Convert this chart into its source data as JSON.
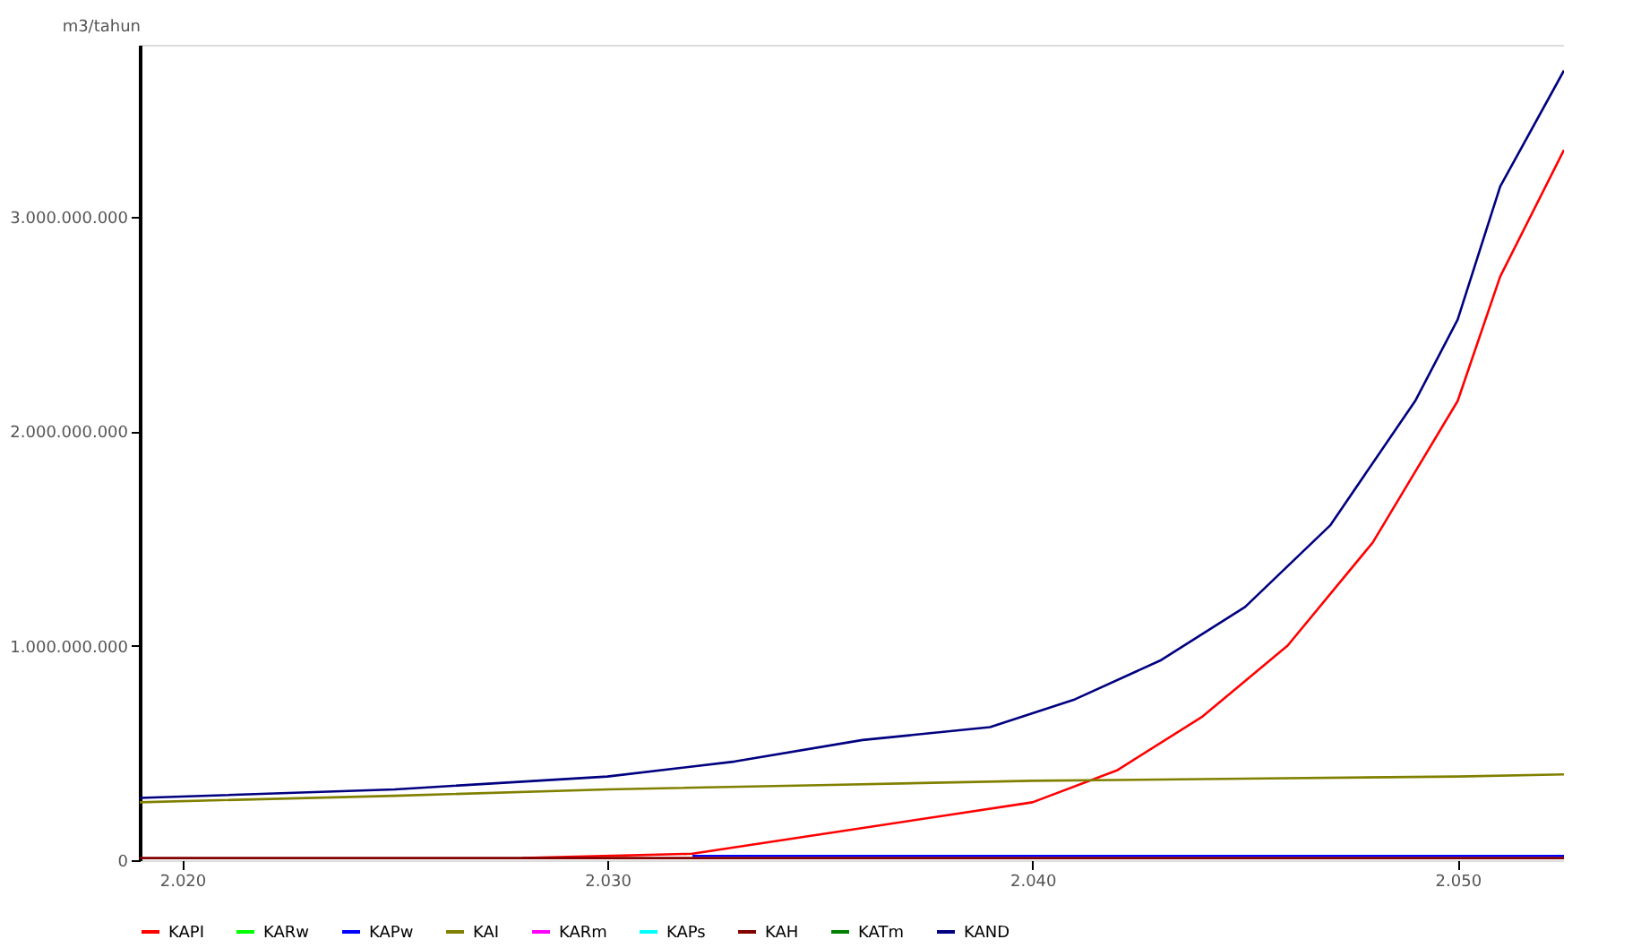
{
  "chart_data": {
    "type": "line",
    "ylabel": "m3/tahun",
    "xlim": [
      2019,
      2052.5
    ],
    "xticks": [
      {
        "value": 2020,
        "label": "2.020"
      },
      {
        "value": 2030,
        "label": "2.030"
      },
      {
        "value": 2040,
        "label": "2.040"
      },
      {
        "value": 2050,
        "label": "2.050"
      }
    ],
    "ylim": [
      0,
      3800000000
    ],
    "yticks": [
      0,
      {
        "value": 1000000000,
        "label": "1.000.000.000"
      },
      {
        "value": 2000000000,
        "label": "2.000.000.000"
      },
      {
        "value": 3000000000,
        "label": "3.000.000.000"
      }
    ],
    "grid": false,
    "legend": "bottom",
    "marker": "none",
    "line_style": "solid",
    "series": [
      {
        "name": "KAPI",
        "color": "#ff0000",
        "x": [
          2028,
          2032,
          2035,
          2038,
          2040,
          2042,
          2044,
          2046,
          2048,
          2050,
          2051,
          2052.5
        ],
        "values": [
          10000000,
          30000000,
          120000000,
          210000000,
          270000000,
          420000000,
          670000000,
          1000000000,
          1480000000,
          2140000000,
          2720000000,
          3310000000
        ]
      },
      {
        "name": "KARw",
        "color": "#00ff00"
      },
      {
        "name": "KAPw",
        "color": "#0000ff",
        "x": [
          2032,
          2052.5
        ],
        "values": [
          20000000,
          20000000
        ]
      },
      {
        "name": "KAI",
        "color": "#808000",
        "x": [
          2019,
          2025,
          2030,
          2035,
          2040,
          2045,
          2050,
          2052.5
        ],
        "values": [
          270000000,
          300000000,
          330000000,
          350000000,
          370000000,
          380000000,
          390000000,
          400000000
        ]
      },
      {
        "name": "KARm",
        "color": "#ff00ff"
      },
      {
        "name": "KAPs",
        "color": "#00ffff"
      },
      {
        "name": "KAH",
        "color": "#800000",
        "x": [
          2019,
          2052.5
        ],
        "values": [
          10000000,
          10000000
        ]
      },
      {
        "name": "KATm",
        "color": "#008000"
      },
      {
        "name": "KAND",
        "color": "#000080",
        "x": [
          2019,
          2025,
          2030,
          2033,
          2036,
          2039,
          2041,
          2043,
          2045,
          2047,
          2049,
          2050,
          2051,
          2052.5
        ],
        "values": [
          290000000,
          330000000,
          390000000,
          460000000,
          560000000,
          620000000,
          750000000,
          930000000,
          1180000000,
          1560000000,
          2140000000,
          2520000000,
          3140000000,
          3680000000
        ]
      }
    ]
  }
}
